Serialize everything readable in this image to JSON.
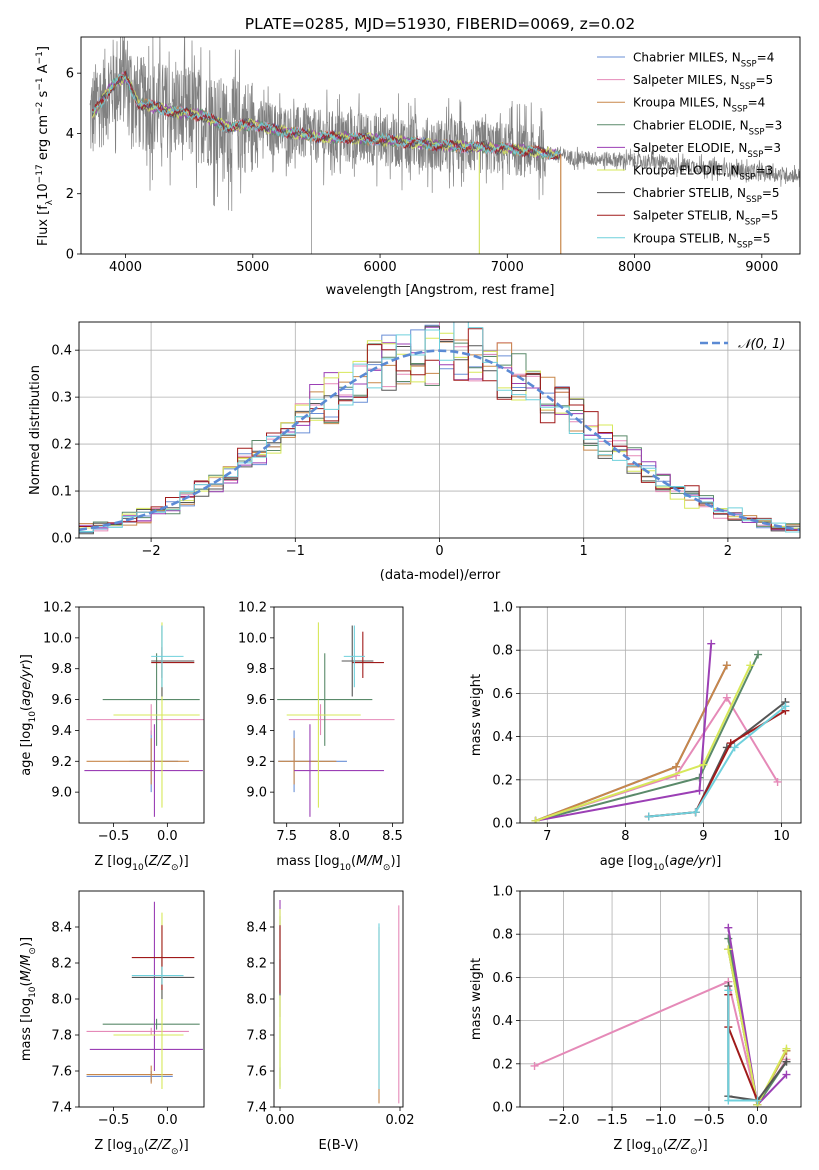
{
  "title": "PLATE=0285, MJD=51930, FIBERID=0069, z=0.02",
  "colors": {
    "Chabrier MILES": "#6a8fd6",
    "Salpeter MILES": "#e58ab8",
    "Kroupa MILES": "#c8874a",
    "Chabrier ELODIE": "#5a8a6a",
    "Salpeter ELODIE": "#9b3fb5",
    "Kroupa ELODIE": "#d7e85a",
    "Chabrier STELIB": "#555555",
    "Salpeter STELIB": "#a01a1a",
    "Kroupa STELIB": "#6fd0dc",
    "data": "#808080",
    "gauss": "#5b8ad4",
    "grid": "#b0b0b0"
  },
  "legend1": [
    {
      "label": "Chabrier MILES, N",
      "sub": "SSP",
      "suffix": "=4"
    },
    {
      "label": "Salpeter MILES, N",
      "sub": "SSP",
      "suffix": "=5"
    },
    {
      "label": "Kroupa MILES, N",
      "sub": "SSP",
      "suffix": "=4"
    },
    {
      "label": "Chabrier ELODIE, N",
      "sub": "SSP",
      "suffix": "=3"
    },
    {
      "label": "Salpeter ELODIE, N",
      "sub": "SSP",
      "suffix": "=3"
    },
    {
      "label": "Kroupa ELODIE, N",
      "sub": "SSP",
      "suffix": "=3"
    },
    {
      "label": "Chabrier STELIB, N",
      "sub": "SSP",
      "suffix": "=5"
    },
    {
      "label": "Salpeter STELIB, N",
      "sub": "SSP",
      "suffix": "=5"
    },
    {
      "label": "Kroupa STELIB, N",
      "sub": "SSP",
      "suffix": "=5"
    }
  ],
  "legend2": "𝒩(0, 1)",
  "chart_data": [
    {
      "id": "spectrum",
      "type": "line",
      "xlabel": "wavelength [Angstrom, rest frame]",
      "ylabel": "Flux [f_λ 10^-17 erg cm^-2 s^-1 A^-1]",
      "xlim": [
        3650,
        9300
      ],
      "ylim": [
        0,
        7.2
      ],
      "xticks": [
        4000,
        5000,
        6000,
        7000,
        8000,
        9000
      ],
      "yticks": [
        0,
        2,
        4,
        6
      ],
      "continuum": [
        [
          3720,
          4.5
        ],
        [
          3800,
          5.0
        ],
        [
          3900,
          5.6
        ],
        [
          4000,
          5.9
        ],
        [
          4100,
          5.0
        ],
        [
          4200,
          4.9
        ],
        [
          4400,
          4.7
        ],
        [
          4600,
          4.6
        ],
        [
          4800,
          4.2
        ],
        [
          5000,
          4.3
        ],
        [
          5200,
          4.1
        ],
        [
          5500,
          3.9
        ],
        [
          6000,
          3.8
        ],
        [
          6500,
          3.6
        ],
        [
          7000,
          3.5
        ],
        [
          7400,
          3.3
        ],
        [
          7500,
          3.2
        ],
        [
          8000,
          3.1
        ],
        [
          8500,
          2.9
        ],
        [
          9000,
          2.7
        ],
        [
          9300,
          2.6
        ]
      ],
      "model_end": [
        7420,
        7420,
        7420,
        7420,
        7420,
        7420,
        7420,
        7420,
        7420
      ]
    },
    {
      "id": "residuals",
      "type": "histogram",
      "xlabel": "(data-model)/error",
      "ylabel": "Normed distribution",
      "xlim": [
        -2.5,
        2.5
      ],
      "ylim": [
        0,
        0.46
      ],
      "xticks": [
        -2,
        -1,
        0,
        1,
        2
      ],
      "yticks": [
        0.0,
        0.1,
        0.2,
        0.3,
        0.4
      ],
      "bin_width": 0.1,
      "gaussian": {
        "mean": 0,
        "sigma": 1
      }
    },
    {
      "id": "age-vs-Z",
      "type": "errorbar",
      "xlabel": "Z [log10(Z/Z⊙)]",
      "ylabel": "age  [log10(age/yr)]",
      "xlim": [
        -0.82,
        0.34
      ],
      "ylim": [
        8.8,
        10.2
      ],
      "xticks": [
        -0.5,
        0.0
      ],
      "yticks": [
        9.0,
        9.2,
        9.4,
        9.6,
        9.8,
        10.0,
        10.2
      ],
      "points": [
        {
          "s": "Chabrier MILES",
          "x": -0.15,
          "xe": [
            0.2,
            0.25
          ],
          "y": 9.2,
          "ye": [
            0.2,
            0.2
          ]
        },
        {
          "s": "Salpeter MILES",
          "x": -0.15,
          "xe": [
            0.6,
            0.5
          ],
          "y": 9.47,
          "ye": [
            0.1,
            0.1
          ]
        },
        {
          "s": "Kroupa MILES",
          "x": -0.15,
          "xe": [
            0.6,
            0.35
          ],
          "y": 9.2,
          "ye": [
            0.15,
            0.15
          ]
        },
        {
          "s": "Chabrier ELODIE",
          "x": -0.1,
          "xe": [
            0.5,
            0.4
          ],
          "y": 9.6,
          "ye": [
            0.3,
            0.3
          ]
        },
        {
          "s": "Salpeter ELODIE",
          "x": -0.12,
          "xe": [
            0.65,
            0.45
          ],
          "y": 9.14,
          "ye": [
            0.3,
            0.3
          ]
        },
        {
          "s": "Kroupa ELODIE",
          "x": -0.05,
          "xe": [
            0.45,
            0.35
          ],
          "y": 9.5,
          "ye": [
            0.6,
            0.6
          ]
        },
        {
          "s": "Chabrier STELIB",
          "x": -0.05,
          "xe": [
            0.1,
            0.3
          ],
          "y": 9.85,
          "ye": [
            0.23,
            0.23
          ]
        },
        {
          "s": "Salpeter STELIB",
          "x": -0.05,
          "xe": [
            0.1,
            0.3
          ],
          "y": 9.84,
          "ye": [
            0.1,
            0.1
          ]
        },
        {
          "s": "Kroupa STELIB",
          "x": -0.05,
          "xe": [
            0.1,
            0.2
          ],
          "y": 9.88,
          "ye": [
            0.2,
            0.2
          ]
        }
      ]
    },
    {
      "id": "age-vs-mass",
      "type": "errorbar",
      "xlabel": "mass [log10(M/M⊙)]",
      "ylabel": "",
      "xlim": [
        7.38,
        8.6
      ],
      "ylim": [
        8.8,
        10.2
      ],
      "xticks": [
        7.5,
        8.0,
        8.5
      ],
      "yticks": [
        9.0,
        9.2,
        9.4,
        9.6,
        9.8,
        10.0,
        10.2
      ],
      "points": [
        {
          "s": "Chabrier MILES",
          "x": 7.57,
          "xe": [
            0.15,
            0.5
          ],
          "y": 9.2,
          "ye": [
            0.2,
            0.2
          ]
        },
        {
          "s": "Salpeter MILES",
          "x": 7.82,
          "xe": [
            0.3,
            0.7
          ],
          "y": 9.47,
          "ye": [
            0.1,
            0.1
          ]
        },
        {
          "s": "Kroupa MILES",
          "x": 7.57,
          "xe": [
            0.15,
            0.4
          ],
          "y": 9.2,
          "ye": [
            0.15,
            0.15
          ]
        },
        {
          "s": "Chabrier ELODIE",
          "x": 7.86,
          "xe": [
            0.45,
            0.45
          ],
          "y": 9.6,
          "ye": [
            0.3,
            0.3
          ]
        },
        {
          "s": "Salpeter ELODIE",
          "x": 7.72,
          "xe": [
            0.15,
            0.7
          ],
          "y": 9.14,
          "ye": [
            0.3,
            0.3
          ]
        },
        {
          "s": "Kroupa ELODIE",
          "x": 7.8,
          "xe": [
            0.3,
            0.4
          ],
          "y": 9.5,
          "ye": [
            0.6,
            0.6
          ]
        },
        {
          "s": "Chabrier STELIB",
          "x": 8.12,
          "xe": [
            0.1,
            0.2
          ],
          "y": 9.85,
          "ye": [
            0.23,
            0.23
          ]
        },
        {
          "s": "Salpeter STELIB",
          "x": 8.22,
          "xe": [
            0.1,
            0.2
          ],
          "y": 9.84,
          "ye": [
            0.1,
            0.2
          ]
        },
        {
          "s": "Kroupa STELIB",
          "x": 8.14,
          "xe": [
            0.1,
            0.1
          ],
          "y": 9.88,
          "ye": [
            0.2,
            0.2
          ]
        }
      ]
    },
    {
      "id": "mass-weight-vs-age",
      "type": "line",
      "xlabel": "age  [log10(age/yr)]",
      "ylabel": "mass weight",
      "xlim": [
        6.65,
        10.25
      ],
      "ylim": [
        0,
        1.0
      ],
      "xticks": [
        7,
        8,
        9,
        10
      ],
      "yticks": [
        0.0,
        0.2,
        0.4,
        0.6,
        0.8,
        1.0
      ],
      "series": [
        {
          "name": "Chabrier MILES",
          "x": [
            6.85,
            8.65,
            9.3
          ],
          "y": [
            0.01,
            0.26,
            0.73
          ]
        },
        {
          "name": "Salpeter MILES",
          "x": [
            6.85,
            8.65,
            9.3,
            9.95
          ],
          "y": [
            0.01,
            0.22,
            0.58,
            0.19
          ]
        },
        {
          "name": "Kroupa MILES",
          "x": [
            6.85,
            8.65,
            9.3
          ],
          "y": [
            0.01,
            0.26,
            0.73
          ]
        },
        {
          "name": "Chabrier ELODIE",
          "x": [
            6.85,
            8.95,
            9.7
          ],
          "y": [
            0.01,
            0.21,
            0.78
          ]
        },
        {
          "name": "Salpeter ELODIE",
          "x": [
            6.85,
            8.95,
            9.1
          ],
          "y": [
            0.01,
            0.15,
            0.83
          ]
        },
        {
          "name": "Kroupa ELODIE",
          "x": [
            6.85,
            9.0,
            9.6
          ],
          "y": [
            0.01,
            0.27,
            0.73
          ]
        },
        {
          "name": "Chabrier STELIB",
          "x": [
            8.3,
            8.9,
            9.3,
            10.05
          ],
          "y": [
            0.03,
            0.05,
            0.35,
            0.56
          ]
        },
        {
          "name": "Salpeter STELIB",
          "x": [
            8.3,
            8.9,
            9.35,
            10.05
          ],
          "y": [
            0.03,
            0.05,
            0.37,
            0.52
          ]
        },
        {
          "name": "Kroupa STELIB",
          "x": [
            8.3,
            8.9,
            9.4,
            10.05
          ],
          "y": [
            0.03,
            0.05,
            0.35,
            0.54
          ]
        }
      ]
    },
    {
      "id": "mass-vs-Z",
      "type": "errorbar",
      "xlabel": "Z [log10(Z/Z⊙)]",
      "ylabel": "mass [log10(M/M⊙)]",
      "xlim": [
        -0.82,
        0.34
      ],
      "ylim": [
        7.4,
        8.6
      ],
      "xticks": [
        -0.5,
        0.0
      ],
      "yticks": [
        7.4,
        7.6,
        7.8,
        8.0,
        8.2,
        8.4
      ],
      "points": [
        {
          "s": "Chabrier MILES",
          "x": -0.15,
          "xe": [
            0.6,
            0.2
          ],
          "y": 7.57,
          "ye": [
            0.03,
            0.03
          ]
        },
        {
          "s": "Salpeter MILES",
          "x": -0.15,
          "xe": [
            0.6,
            0.35
          ],
          "y": 7.82,
          "ye": [
            0.02,
            0.02
          ]
        },
        {
          "s": "Kroupa MILES",
          "x": -0.15,
          "xe": [
            0.6,
            0.2
          ],
          "y": 7.58,
          "ye": [
            0.05,
            0.05
          ]
        },
        {
          "s": "Chabrier ELODIE",
          "x": -0.1,
          "xe": [
            0.5,
            0.4
          ],
          "y": 7.86,
          "ye": [
            0.03,
            0.03
          ]
        },
        {
          "s": "Salpeter ELODIE",
          "x": -0.12,
          "xe": [
            0.6,
            0.45
          ],
          "y": 7.72,
          "ye": [
            0.12,
            0.82
          ]
        },
        {
          "s": "Kroupa ELODIE",
          "x": -0.05,
          "xe": [
            0.45,
            0.2
          ],
          "y": 7.8,
          "ye": [
            0.3,
            0.68
          ]
        },
        {
          "s": "Chabrier STELIB",
          "x": -0.05,
          "xe": [
            0.28,
            0.3
          ],
          "y": 8.12,
          "ye": [
            0.12,
            0.12
          ]
        },
        {
          "s": "Salpeter STELIB",
          "x": -0.05,
          "xe": [
            0.28,
            0.3
          ],
          "y": 8.23,
          "ye": [
            0.18,
            0.18
          ]
        },
        {
          "s": "Kroupa STELIB",
          "x": -0.05,
          "xe": [
            0.28,
            0.2
          ],
          "y": 8.13,
          "ye": [
            0.05,
            0.05
          ]
        }
      ]
    },
    {
      "id": "mass-vs-EBV",
      "type": "errorbar",
      "xlabel": "E(B-V)",
      "ylabel": "",
      "xlim": [
        -0.001,
        0.0205
      ],
      "ylim": [
        7.4,
        8.6
      ],
      "xticks": [
        0.0,
        0.02
      ],
      "yticks": [
        7.4,
        7.6,
        7.8,
        8.0,
        8.2,
        8.4
      ],
      "points": [
        {
          "s": "Chabrier MILES",
          "x": 0.0,
          "xe": [
            0,
            0
          ],
          "y": 7.57,
          "ye": [
            0.05,
            0.05
          ]
        },
        {
          "s": "Salpeter MILES",
          "x": 0.0198,
          "xe": [
            0,
            0
          ],
          "y": 7.82,
          "ye": [
            0.4,
            0.7
          ]
        },
        {
          "s": "Kroupa MILES",
          "x": 0.0165,
          "xe": [
            0,
            0
          ],
          "y": 7.9,
          "ye": [
            0.48,
            0.5
          ]
        },
        {
          "s": "Chabrier ELODIE",
          "x": 0.0,
          "xe": [
            0,
            0
          ],
          "y": 7.86,
          "ye": [
            0.35,
            0.6
          ]
        },
        {
          "s": "Salpeter ELODIE",
          "x": 0.0,
          "xe": [
            0,
            0
          ],
          "y": 8.1,
          "ye": [
            0.2,
            0.45
          ]
        },
        {
          "s": "Kroupa ELODIE",
          "x": 0.0,
          "xe": [
            0,
            0
          ],
          "y": 7.9,
          "ye": [
            0.4,
            0.6
          ]
        },
        {
          "s": "Chabrier STELIB",
          "x": 0.0,
          "xe": [
            0,
            0
          ],
          "y": 8.12,
          "ye": [
            0.1,
            0.1
          ]
        },
        {
          "s": "Salpeter STELIB",
          "x": 0.0,
          "xe": [
            0,
            0
          ],
          "y": 8.23,
          "ye": [
            0.2,
            0.18
          ]
        },
        {
          "s": "Kroupa STELIB",
          "x": 0.0165,
          "xe": [
            0,
            0
          ],
          "y": 8.0,
          "ye": [
            0.5,
            0.42
          ]
        }
      ]
    },
    {
      "id": "mass-weight-vs-Z",
      "type": "line",
      "xlabel": "Z [log10(Z/Z⊙)]",
      "ylabel": "mass weight",
      "xlim": [
        -2.45,
        0.45
      ],
      "ylim": [
        0,
        1.0
      ],
      "xticks": [
        -2.0,
        -1.5,
        -1.0,
        -0.5,
        0.0
      ],
      "yticks": [
        0.0,
        0.2,
        0.4,
        0.6,
        0.8,
        1.0
      ],
      "series": [
        {
          "name": "Chabrier MILES",
          "x": [
            -0.3,
            0.0,
            0.3
          ],
          "y": [
            0.73,
            0.01,
            0.26
          ]
        },
        {
          "name": "Salpeter MILES",
          "x": [
            -2.3,
            -0.3,
            0.0,
            0.3
          ],
          "y": [
            0.19,
            0.58,
            0.01,
            0.22
          ]
        },
        {
          "name": "Kroupa MILES",
          "x": [
            -0.3,
            0.0,
            0.3
          ],
          "y": [
            0.73,
            0.01,
            0.26
          ]
        },
        {
          "name": "Chabrier ELODIE",
          "x": [
            -0.3,
            0.0,
            0.3
          ],
          "y": [
            0.78,
            0.01,
            0.21
          ]
        },
        {
          "name": "Salpeter ELODIE",
          "x": [
            -0.3,
            0.0,
            0.3
          ],
          "y": [
            0.83,
            0.01,
            0.15
          ]
        },
        {
          "name": "Kroupa ELODIE",
          "x": [
            -0.3,
            0.0,
            0.3
          ],
          "y": [
            0.73,
            0.01,
            0.27
          ]
        },
        {
          "name": "Chabrier STELIB",
          "x": [
            -0.3,
            -0.3,
            0.0,
            0.3
          ],
          "y": [
            0.56,
            0.05,
            0.03,
            0.21
          ]
        },
        {
          "name": "Salpeter STELIB",
          "x": [
            -0.3,
            -0.3,
            0.0
          ],
          "y": [
            0.52,
            0.37,
            0.03
          ]
        },
        {
          "name": "Kroupa STELIB",
          "x": [
            -0.3,
            -0.3,
            0.0
          ],
          "y": [
            0.54,
            0.03,
            0.03
          ]
        }
      ]
    }
  ]
}
